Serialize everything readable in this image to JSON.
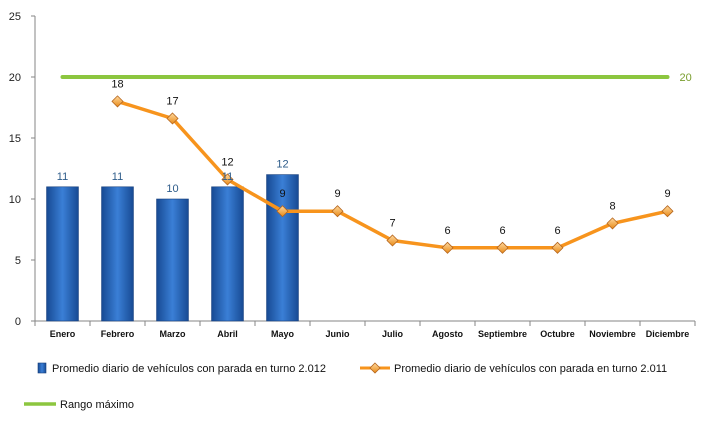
{
  "chart_data": {
    "type": "bar",
    "categories": [
      "Enero",
      "Febrero",
      "Marzo",
      "Abril",
      "Mayo",
      "Junio",
      "Julio",
      "Agosto",
      "Septiembre",
      "Octubre",
      "Noviembre",
      "Diciembre"
    ],
    "ylim": [
      0,
      25
    ],
    "yticks": [
      0,
      5,
      10,
      15,
      20,
      25
    ],
    "series": [
      {
        "name": "Promedio diario de vehículos con parada en turno 2.012",
        "kind": "bar",
        "color": "#1f5fb4",
        "values": [
          11,
          11,
          10,
          11,
          12,
          null,
          null,
          null,
          null,
          null,
          null,
          null
        ],
        "labels": [
          "11",
          "11",
          "10",
          "11",
          "12",
          "",
          "",
          "",
          "",
          "",
          "",
          ""
        ]
      },
      {
        "name": "Promedio diario de vehículos con parada en turno 2.011",
        "kind": "line",
        "color": "#f7941d",
        "values": [
          null,
          18,
          16.6,
          11.6,
          9,
          9,
          6.6,
          6,
          6,
          6,
          8,
          9
        ],
        "labels": [
          "",
          "18",
          "17",
          "12",
          "9",
          "9",
          "7",
          "6",
          "6",
          "6",
          "8",
          "9"
        ]
      },
      {
        "name": "Rango máximo",
        "kind": "line",
        "color": "#8cc63f",
        "values": [
          20,
          20,
          20,
          20,
          20,
          20,
          20,
          20,
          20,
          20,
          20,
          20
        ],
        "labels": [
          "",
          "",
          "",
          "",
          "",
          "",
          "",
          "",
          "",
          "",
          "",
          "20"
        ]
      }
    ]
  }
}
